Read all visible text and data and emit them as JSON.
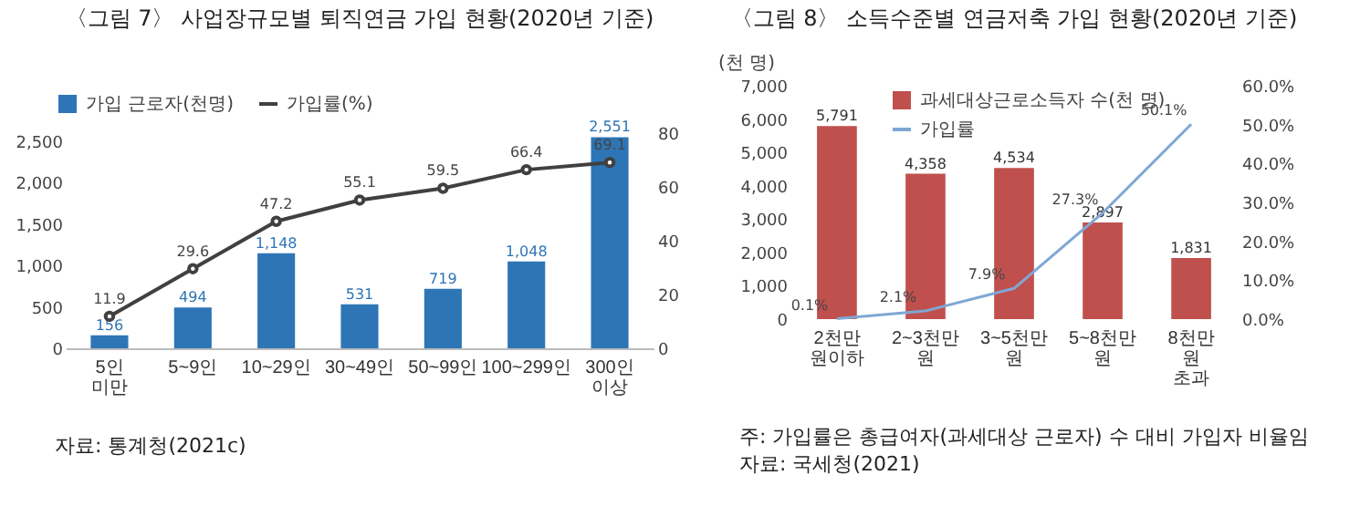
{
  "chart_data": [
    {
      "type": "bar",
      "title": "〈그림 7〉 사업장규모별 퇴직연금 가입 현황(2020년 기준)",
      "categories": [
        "5인 미만",
        "5~9인",
        "10~29인",
        "30~49인",
        "50~99인",
        "100~299인",
        "300인 이상"
      ],
      "series": [
        {
          "name": "가입 근로자(천명)",
          "color": "#2e75b6",
          "values": [
            156,
            494,
            1148,
            531,
            719,
            1048,
            2551
          ],
          "value_labels": [
            "156",
            "494",
            "1,148",
            "531",
            "719",
            "1,048",
            "2,551"
          ]
        },
        {
          "name": "가입률(%)",
          "type": "line",
          "axis": "y2",
          "color": "#404040",
          "marker": "circle",
          "values": [
            11.9,
            29.6,
            47.2,
            55.1,
            59.5,
            66.4,
            69.1
          ]
        }
      ],
      "ylim": [
        0,
        2600
      ],
      "yticks": [
        0,
        {
          "value": 500,
          "label": "500"
        },
        {
          "value": 1000,
          "label": "1,000"
        },
        {
          "value": 1500,
          "label": "1,500"
        },
        {
          "value": 2000,
          "label": "2,000"
        },
        {
          "value": 2500,
          "label": "2,500"
        }
      ],
      "y2lim": [
        0,
        80
      ],
      "y2ticks": [
        0,
        20,
        40,
        60,
        80
      ],
      "data_labels": true,
      "legend": "top left",
      "grid": false,
      "annotations": [
        "자료: 통계청(2021c)"
      ]
    },
    {
      "type": "bar",
      "title": "〈그림 8〉 소득수준별 연금저축 가입 현황(2020년 기준)",
      "ylabel": "(천 명)",
      "categories": [
        "2천만 원이하",
        "2~3천만 원",
        "3~5천만 원",
        "5~8천만 원",
        "8천만 원 초과"
      ],
      "series": [
        {
          "name": "과세대상근로소득자 수(천 명)",
          "color": "#c0504d",
          "values": [
            5791,
            4358,
            4534,
            2897,
            1831
          ],
          "value_labels": [
            "5,791",
            "4,358",
            "4,534",
            "2,897",
            "1,831"
          ]
        },
        {
          "name": "가입률",
          "type": "line",
          "axis": "y2",
          "color": "#7fa7d4",
          "values": [
            0.1,
            2.1,
            7.9,
            27.3,
            50.1
          ],
          "value_labels": [
            "0.1%",
            "2.1%",
            "7.9%",
            "27.3%",
            "50.1%"
          ]
        }
      ],
      "ylim": [
        0,
        7000
      ],
      "yticks": [
        0,
        {
          "value": 1000,
          "label": "1,000"
        },
        {
          "value": 2000,
          "label": "2,000"
        },
        {
          "value": 3000,
          "label": "3,000"
        },
        {
          "value": 4000,
          "label": "4,000"
        },
        {
          "value": 5000,
          "label": "5,000"
        },
        {
          "value": 6000,
          "label": "6,000"
        },
        {
          "value": 7000,
          "label": "7,000"
        }
      ],
      "y2lim": [
        0,
        60
      ],
      "y2ticks": [
        {
          "value": 0,
          "label": "0.0%"
        },
        {
          "value": 10,
          "label": "10.0%"
        },
        {
          "value": 20,
          "label": "20.0%"
        },
        {
          "value": 30,
          "label": "30.0%"
        },
        {
          "value": 40,
          "label": "40.0%"
        },
        {
          "value": 50,
          "label": "50.0%"
        },
        {
          "value": 60,
          "label": "60.0%"
        }
      ],
      "data_labels": true,
      "legend": "top",
      "grid": false,
      "annotations": [
        "주: 가입률은 총급여자(과세대상 근로자) 수 대비 가입자 비율임",
        "자료: 국세청(2021)"
      ]
    }
  ]
}
